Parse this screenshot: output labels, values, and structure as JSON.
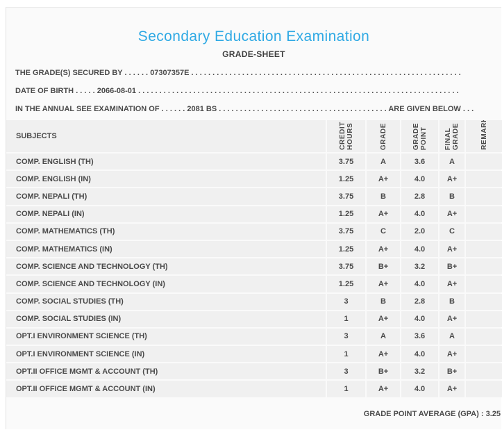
{
  "header": {
    "title": "Secondary Education Examination",
    "subtitle": "GRADE-SHEET"
  },
  "info": {
    "secured_by": {
      "label": "THE GRADE(S) SECURED BY",
      "dots_before": ". . . . . .",
      "value": "07307357E",
      "dots_after": ". . . . . . . . . . . . . . . . . . . . . . . . . . . . . . . . . . . . . . . . . . . . . . . . . . . . . . . . . . . . . . . ."
    },
    "date_of_birth": {
      "label": "DATE OF BIRTH",
      "dots_before": ". . . . .",
      "value": "2066-08-01",
      "dots_after": ". . . . . . . . . . . . . . . . . . . . . . . . . . . . . . . . . . . . . . . . . . . . . . . . . . . . . . . . . . . . . . . . . . . . . . . . . . . ."
    },
    "examination": {
      "label": "IN THE ANNUAL SEE EXAMINATION OF",
      "dots_before": ". . . . . .",
      "value": "2081 BS",
      "dots_after": ". . . . . . . . . . . . . . . . . . . . . . . . . . . . . . . . . . . . . . . .",
      "suffix": "ARE GIVEN BELOW",
      "dots_end": ". . ."
    }
  },
  "table": {
    "columns": [
      "SUBJECTS",
      "CREDIT\nHOURS",
      "GRADE",
      "GRADE\nPOINT",
      "FINAL\nGRADE",
      "REMARKS"
    ],
    "rows": [
      [
        "COMP. ENGLISH (TH)",
        "3.75",
        "A",
        "3.6",
        "A",
        ""
      ],
      [
        "COMP. ENGLISH (IN)",
        "1.25",
        "A+",
        "4.0",
        "A+",
        ""
      ],
      [
        "COMP. NEPALI (TH)",
        "3.75",
        "B",
        "2.8",
        "B",
        ""
      ],
      [
        "COMP. NEPALI (IN)",
        "1.25",
        "A+",
        "4.0",
        "A+",
        ""
      ],
      [
        "COMP. MATHEMATICS (TH)",
        "3.75",
        "C",
        "2.0",
        "C",
        ""
      ],
      [
        "COMP. MATHEMATICS (IN)",
        "1.25",
        "A+",
        "4.0",
        "A+",
        ""
      ],
      [
        "COMP. SCIENCE AND TECHNOLOGY (TH)",
        "3.75",
        "B+",
        "3.2",
        "B+",
        ""
      ],
      [
        "COMP. SCIENCE AND TECHNOLOGY (IN)",
        "1.25",
        "A+",
        "4.0",
        "A+",
        ""
      ],
      [
        "COMP. SOCIAL STUDIES (TH)",
        "3",
        "B",
        "2.8",
        "B",
        ""
      ],
      [
        "COMP. SOCIAL STUDIES (IN)",
        "1",
        "A+",
        "4.0",
        "A+",
        ""
      ],
      [
        "OPT.I ENVIRONMENT SCIENCE (TH)",
        "3",
        "A",
        "3.6",
        "A",
        ""
      ],
      [
        "OPT.I ENVIRONMENT SCIENCE (IN)",
        "1",
        "A+",
        "4.0",
        "A+",
        ""
      ],
      [
        "OPT.II OFFICE MGMT & ACCOUNT (TH)",
        "3",
        "B+",
        "3.2",
        "B+",
        ""
      ],
      [
        "OPT.II OFFICE MGMT & ACCOUNT (IN)",
        "1",
        "A+",
        "4.0",
        "A+",
        ""
      ]
    ]
  },
  "footer": {
    "gpa_label": "GRADE POINT AVERAGE (GPA) :",
    "gpa_value": "3.25"
  },
  "colors": {
    "accent_blue": "#2fa9e4",
    "text_dark": "#4a4a4a",
    "cell_bg": "#f0f0f0",
    "panel_bg": "#fafafa"
  }
}
